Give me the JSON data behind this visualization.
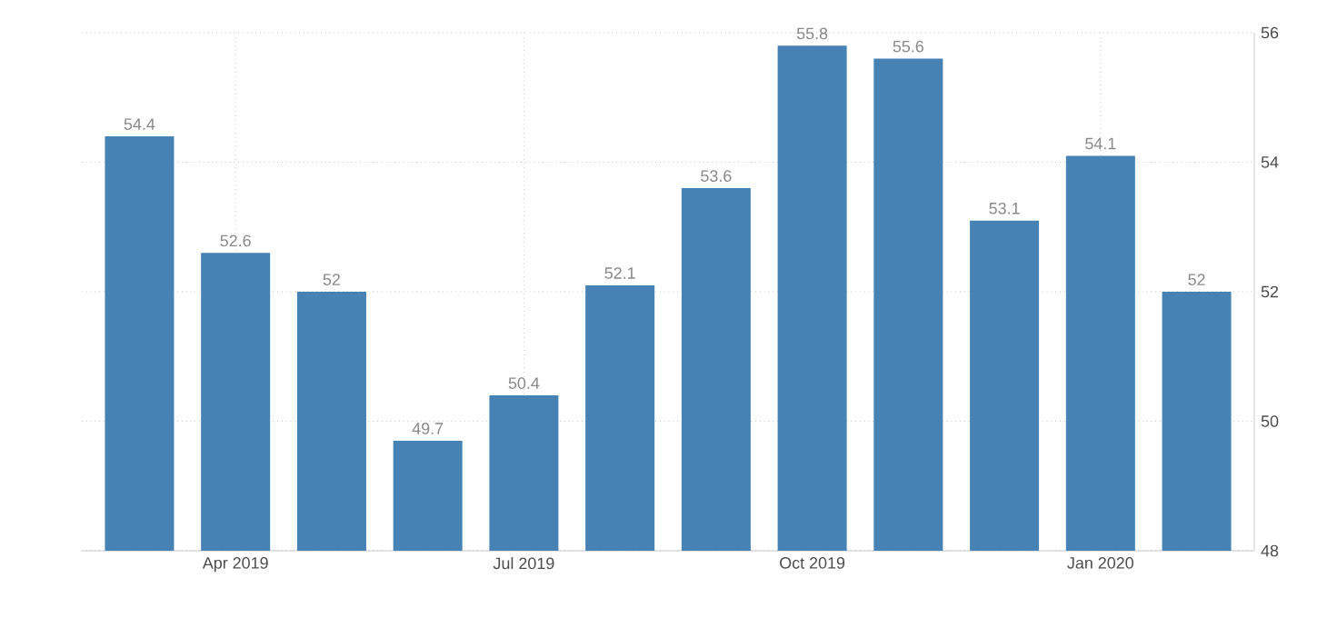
{
  "chart_data": {
    "type": "bar",
    "categories": [
      null,
      "Apr 2019",
      null,
      null,
      "Jul 2019",
      null,
      null,
      "Oct 2019",
      null,
      null,
      "Jan 2020",
      null
    ],
    "values": [
      54.4,
      52.6,
      52,
      49.7,
      50.4,
      52.1,
      53.6,
      55.8,
      55.6,
      53.1,
      54.1,
      52
    ],
    "color": "#4682b4",
    "ylim": [
      48,
      56
    ],
    "yticks": [
      48,
      50,
      52,
      54,
      56
    ],
    "grid": true,
    "data_labels": true
  }
}
